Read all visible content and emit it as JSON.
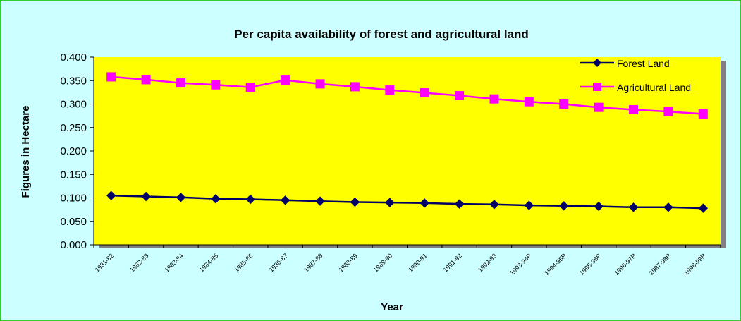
{
  "chart_data": {
    "type": "line",
    "title": "Per capita availability of forest and agricultural land",
    "xlabel": "Year",
    "ylabel": "Figures in Hectare",
    "ylim": [
      0,
      0.4
    ],
    "yticks": [
      "0.000",
      "0.050",
      "0.100",
      "0.150",
      "0.200",
      "0.250",
      "0.300",
      "0.350",
      "0.400"
    ],
    "categories": [
      "1981-82",
      "1982-83",
      "1983-84",
      "1984-85",
      "1985-86",
      "1986-87",
      "1987-88",
      "1988-89",
      "1989-90",
      "1990-91",
      "1991-92",
      "1992-93",
      "1993-94P",
      "1994-95P",
      "1995-96P",
      "1996-97P",
      "1997-98P",
      "1998-99P"
    ],
    "series": [
      {
        "name": "Forest Land",
        "color": "#000066",
        "marker": "diamond",
        "values": [
          0.105,
          0.103,
          0.101,
          0.098,
          0.097,
          0.095,
          0.093,
          0.091,
          0.09,
          0.089,
          0.087,
          0.086,
          0.084,
          0.083,
          0.082,
          0.08,
          0.08,
          0.078
        ]
      },
      {
        "name": "Agricultural Land",
        "color": "#ff00ff",
        "marker": "square",
        "values": [
          0.358,
          0.352,
          0.345,
          0.341,
          0.336,
          0.351,
          0.343,
          0.337,
          0.33,
          0.324,
          0.318,
          0.311,
          0.305,
          0.3,
          0.293,
          0.288,
          0.284,
          0.279
        ]
      }
    ],
    "plot_background": "#ffff00",
    "legend_position": "top-right",
    "grid": false
  }
}
